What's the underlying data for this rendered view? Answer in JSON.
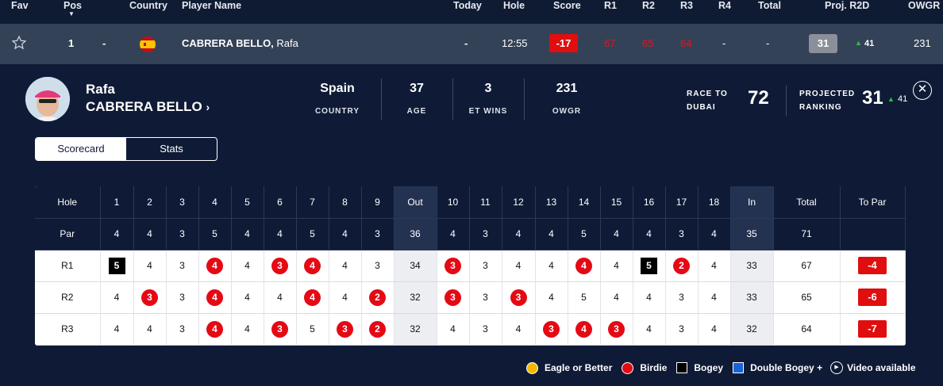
{
  "header": {
    "fav": "Fav",
    "pos": "Pos",
    "country": "Country",
    "player": "Player Name",
    "today": "Today",
    "hole": "Hole",
    "score": "Score",
    "r1": "R1",
    "r2": "R2",
    "r3": "R3",
    "r4": "R4",
    "total": "Total",
    "proj": "Proj. R2D",
    "owgr": "OWGR"
  },
  "player_row": {
    "pos": "1",
    "movement": "-",
    "name": "CABRERA BELLO,",
    "first": "Rafa",
    "today": "-",
    "hole": "12:55",
    "score": "-17",
    "r1": "67",
    "r2": "65",
    "r3": "64",
    "r4": "-",
    "total": "-",
    "proj": "31",
    "proj_change": "41",
    "owgr": "231"
  },
  "detail": {
    "first_name": "Rafa",
    "last_name": "CABRERA BELLO",
    "stats": [
      {
        "value": "Spain",
        "label": "COUNTRY"
      },
      {
        "value": "37",
        "label": "AGE"
      },
      {
        "value": "3",
        "label": "ET WINS"
      },
      {
        "value": "231",
        "label": "OWGR"
      }
    ],
    "race_label_1": "RACE TO",
    "race_label_2": "DUBAI",
    "race_value": "72",
    "proj_label_1": "PROJECTED",
    "proj_label_2": "RANKING",
    "proj_value": "31",
    "proj_change": "41"
  },
  "tabs": [
    "Scorecard",
    "Stats"
  ],
  "scorecard": {
    "hole_label": "Hole",
    "par_label": "Par",
    "holes": [
      "1",
      "2",
      "3",
      "4",
      "5",
      "6",
      "7",
      "8",
      "9",
      "Out",
      "10",
      "11",
      "12",
      "13",
      "14",
      "15",
      "16",
      "17",
      "18",
      "In",
      "Total",
      "To Par"
    ],
    "pars": [
      "4",
      "4",
      "3",
      "5",
      "4",
      "4",
      "5",
      "4",
      "3",
      "36",
      "4",
      "3",
      "4",
      "4",
      "5",
      "4",
      "4",
      "3",
      "4",
      "35",
      "71",
      ""
    ],
    "rounds": [
      {
        "label": "R1",
        "scores": [
          "5",
          "4",
          "3",
          "4",
          "4",
          "3",
          "4",
          "4",
          "3",
          "34",
          "3",
          "3",
          "4",
          "4",
          "4",
          "4",
          "5",
          "2",
          "4",
          "33",
          "67",
          "-4"
        ],
        "marks": [
          "bogey",
          "",
          "",
          "birdie",
          "",
          "birdie",
          "birdie",
          "",
          "",
          "",
          "birdie",
          "",
          "",
          "",
          "birdie",
          "",
          "bogey",
          "birdie",
          "",
          "",
          "",
          ""
        ]
      },
      {
        "label": "R2",
        "scores": [
          "4",
          "3",
          "3",
          "4",
          "4",
          "4",
          "4",
          "4",
          "2",
          "32",
          "3",
          "3",
          "3",
          "4",
          "5",
          "4",
          "4",
          "3",
          "4",
          "33",
          "65",
          "-6"
        ],
        "marks": [
          "",
          "birdie",
          "",
          "birdie",
          "",
          "",
          "birdie",
          "",
          "birdie",
          "",
          "birdie",
          "",
          "birdie",
          "",
          "",
          "",
          "",
          "",
          "",
          "",
          "",
          ""
        ]
      },
      {
        "label": "R3",
        "scores": [
          "4",
          "4",
          "3",
          "4",
          "4",
          "3",
          "5",
          "3",
          "2",
          "32",
          "4",
          "3",
          "4",
          "3",
          "4",
          "3",
          "4",
          "3",
          "4",
          "32",
          "64",
          "-7"
        ],
        "marks": [
          "",
          "",
          "",
          "birdie",
          "",
          "birdie",
          "",
          "birdie",
          "birdie",
          "",
          "",
          "",
          "",
          "birdie",
          "birdie",
          "birdie",
          "",
          "",
          "",
          "",
          "",
          ""
        ]
      }
    ]
  },
  "legend": {
    "eagle": "Eagle or Better",
    "birdie": "Birdie",
    "bogey": "Bogey",
    "double": "Double Bogey +",
    "video": "Video available"
  },
  "colors": {
    "eagle": "#f5b800",
    "birdie": "#e50914",
    "bogey": "#000000",
    "double": "#1565d8"
  }
}
